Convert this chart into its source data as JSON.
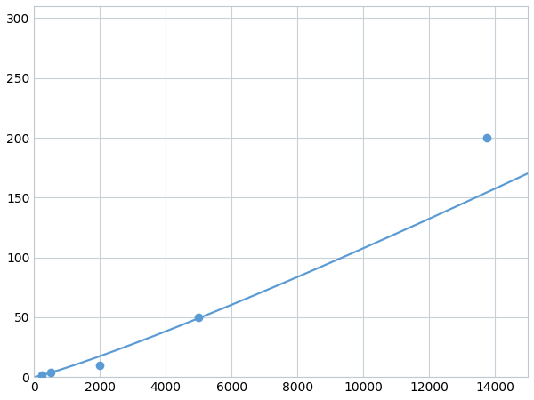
{
  "x_data": [
    250,
    500,
    2000,
    5000,
    13750
  ],
  "y_data": [
    2,
    4,
    10,
    50,
    200
  ],
  "line_color": "#5b9bd5",
  "marker_color": "#5b9bd5",
  "marker_size": 7,
  "line_width": 1.6,
  "xlim": [
    0,
    15000
  ],
  "ylim": [
    0,
    310
  ],
  "xticks": [
    0,
    2000,
    4000,
    6000,
    8000,
    10000,
    12000,
    14000
  ],
  "yticks": [
    0,
    50,
    100,
    150,
    200,
    250,
    300
  ],
  "tick_label_fontsize": 10,
  "grid_color": "#c8d0d8",
  "background_color": "#ffffff",
  "spine_color": "#c0c8d0"
}
